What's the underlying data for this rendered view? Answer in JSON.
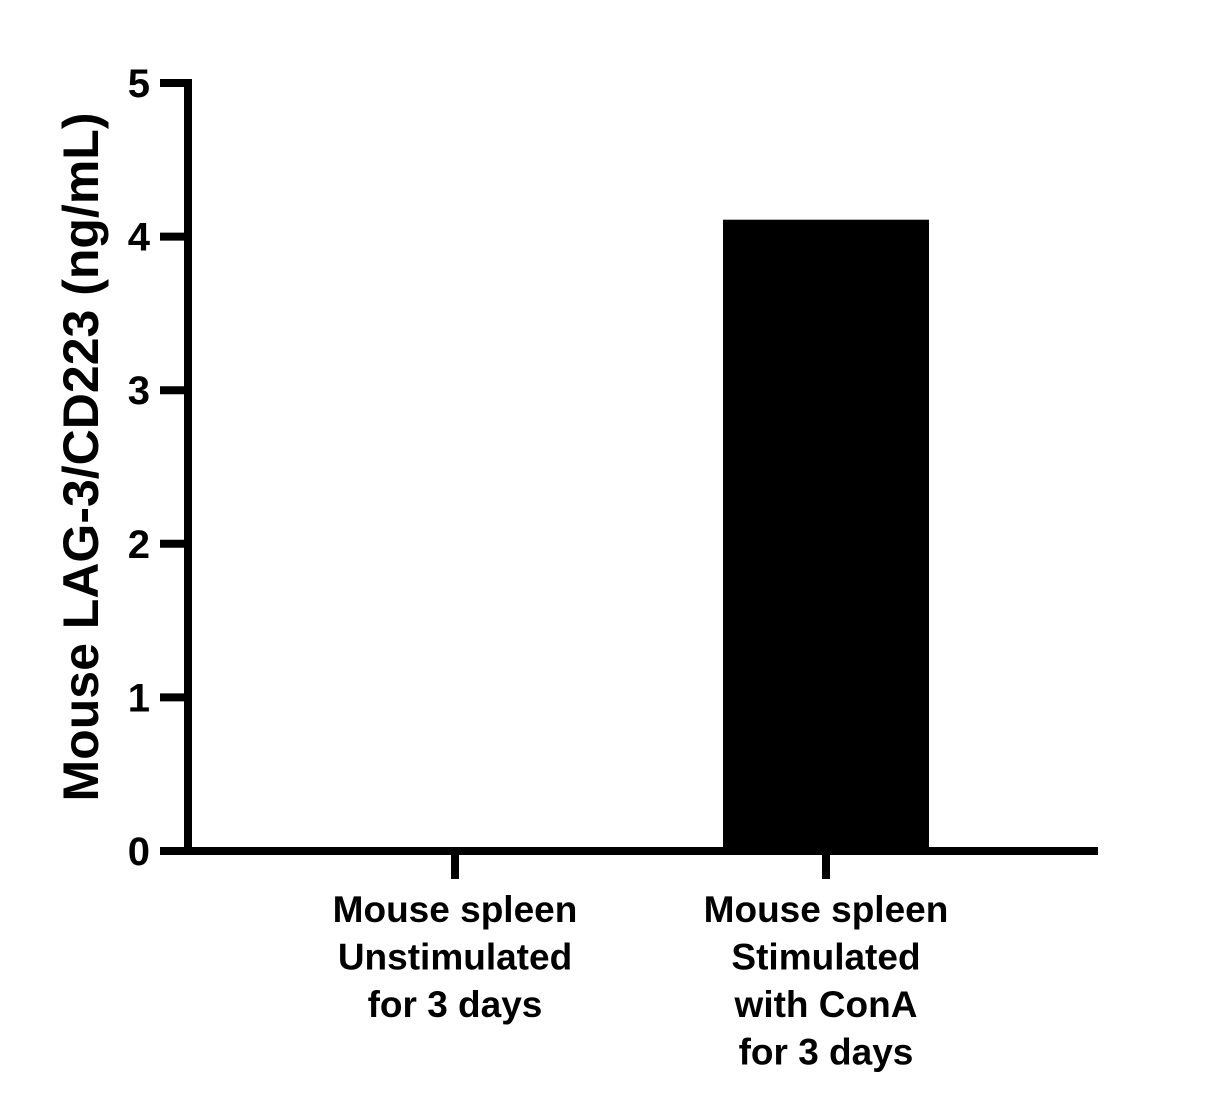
{
  "chart_data": {
    "type": "bar",
    "title": "",
    "xlabel": "",
    "ylabel": "Mouse LAG-3/CD223 (ng/mL)",
    "ylim": [
      0,
      5
    ],
    "yticks": [
      "0",
      "1",
      "2",
      "3",
      "4",
      "5"
    ],
    "categories": [
      [
        "Mouse spleen",
        "Unstimulated",
        "for 3 days"
      ],
      [
        "Mouse spleen",
        "Stimulated",
        "with ConA",
        "for 3 days"
      ]
    ],
    "values": [
      0,
      4.11
    ],
    "bar_color": "#000000",
    "grid": false,
    "legend": "none"
  }
}
